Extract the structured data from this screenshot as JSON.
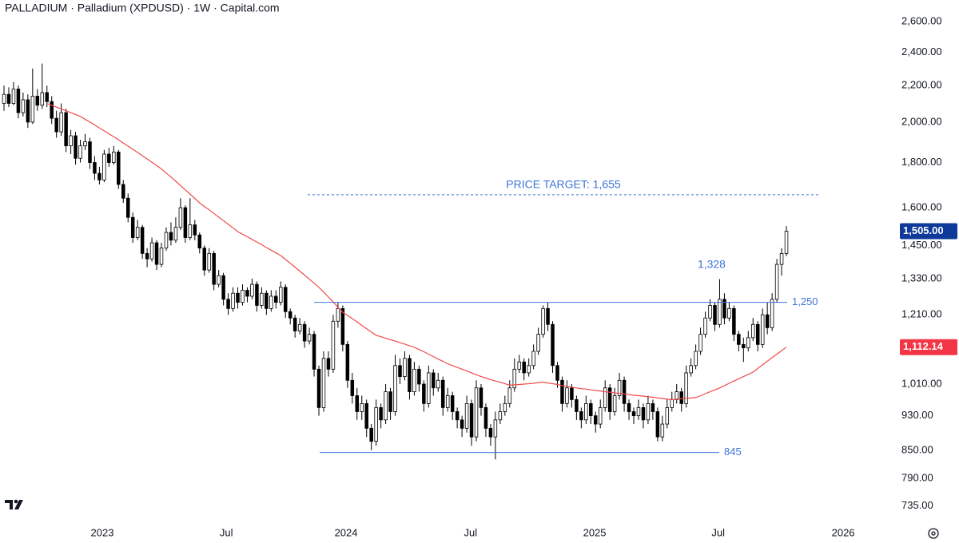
{
  "chart_data": {
    "type": "candlestick",
    "title": "PALLADIUM · Palladium (XPDUSD) · 1W · Capital.com",
    "log_scale": true,
    "ylim": [
      703,
      2750
    ],
    "yticks": [
      {
        "value": 2600,
        "label": "2,600.00"
      },
      {
        "value": 2400,
        "label": "2,400.00"
      },
      {
        "value": 2200,
        "label": "2,200.00"
      },
      {
        "value": 2000,
        "label": "2,000.00"
      },
      {
        "value": 1800,
        "label": "1,800.00"
      },
      {
        "value": 1600,
        "label": "1,600.00"
      },
      {
        "value": 1450,
        "label": "1,450.00"
      },
      {
        "value": 1330,
        "label": "1,330.00"
      },
      {
        "value": 1210,
        "label": "1,210.00"
      },
      {
        "value": 1010,
        "label": "1,010.00"
      },
      {
        "value": 930,
        "label": "930.00"
      },
      {
        "value": 850,
        "label": "850.00"
      },
      {
        "value": 790,
        "label": "790.00"
      },
      {
        "value": 735,
        "label": "735.00"
      }
    ],
    "xlim": [
      -0.84,
      185.1
    ],
    "xticks": [
      {
        "value": 20.6,
        "label": "2023"
      },
      {
        "value": 46.6,
        "label": "Jul"
      },
      {
        "value": 71.7,
        "label": "2024"
      },
      {
        "value": 97.8,
        "label": "Jul"
      },
      {
        "value": 123.8,
        "label": "2025"
      },
      {
        "value": 149.7,
        "label": "Jul"
      },
      {
        "value": 175.9,
        "label": "2026"
      }
    ],
    "up_color": "#ffffff",
    "down_color": "#000000",
    "candles": [
      [
        2100,
        2200,
        2060,
        2150
      ],
      [
        2150,
        2190,
        2080,
        2100
      ],
      [
        2100,
        2220,
        2090,
        2180
      ],
      [
        2180,
        2200,
        2020,
        2050
      ],
      [
        2050,
        2160,
        2030,
        2120
      ],
      [
        2120,
        2150,
        1970,
        2000
      ],
      [
        2000,
        2300,
        1990,
        2140
      ],
      [
        2140,
        2180,
        2060,
        2090
      ],
      [
        2090,
        2330,
        2070,
        2160
      ],
      [
        2160,
        2200,
        2080,
        2110
      ],
      [
        2110,
        2140,
        1990,
        2020
      ],
      [
        2020,
        2060,
        1920,
        1950
      ],
      [
        1950,
        2100,
        1930,
        2050
      ],
      [
        2050,
        2070,
        1850,
        1880
      ],
      [
        1880,
        1960,
        1840,
        1930
      ],
      [
        1930,
        1950,
        1790,
        1820
      ],
      [
        1820,
        1910,
        1800,
        1880
      ],
      [
        1880,
        1940,
        1860,
        1900
      ],
      [
        1900,
        1920,
        1770,
        1800
      ],
      [
        1800,
        1830,
        1720,
        1750
      ],
      [
        1750,
        1780,
        1700,
        1720
      ],
      [
        1720,
        1860,
        1710,
        1840
      ],
      [
        1840,
        1870,
        1780,
        1800
      ],
      [
        1800,
        1880,
        1790,
        1850
      ],
      [
        1850,
        1860,
        1680,
        1700
      ],
      [
        1700,
        1720,
        1620,
        1640
      ],
      [
        1640,
        1660,
        1540,
        1560
      ],
      [
        1560,
        1580,
        1460,
        1480
      ],
      [
        1480,
        1550,
        1470,
        1520
      ],
      [
        1520,
        1530,
        1400,
        1420
      ],
      [
        1420,
        1440,
        1370,
        1400
      ],
      [
        1400,
        1480,
        1390,
        1460
      ],
      [
        1460,
        1470,
        1360,
        1380
      ],
      [
        1380,
        1460,
        1370,
        1440
      ],
      [
        1440,
        1520,
        1430,
        1500
      ],
      [
        1500,
        1540,
        1450,
        1470
      ],
      [
        1470,
        1560,
        1460,
        1520
      ],
      [
        1520,
        1640,
        1510,
        1600
      ],
      [
        1600,
        1610,
        1460,
        1480
      ],
      [
        1480,
        1640,
        1470,
        1530
      ],
      [
        1530,
        1550,
        1470,
        1490
      ],
      [
        1490,
        1500,
        1420,
        1440
      ],
      [
        1440,
        1450,
        1340,
        1360
      ],
      [
        1360,
        1440,
        1350,
        1420
      ],
      [
        1420,
        1430,
        1290,
        1310
      ],
      [
        1310,
        1360,
        1300,
        1340
      ],
      [
        1340,
        1350,
        1240,
        1260
      ],
      [
        1260,
        1280,
        1210,
        1230
      ],
      [
        1230,
        1300,
        1220,
        1280
      ],
      [
        1280,
        1300,
        1230,
        1250
      ],
      [
        1250,
        1310,
        1240,
        1290
      ],
      [
        1290,
        1300,
        1250,
        1270
      ],
      [
        1270,
        1330,
        1260,
        1310
      ],
      [
        1310,
        1320,
        1220,
        1240
      ],
      [
        1240,
        1300,
        1230,
        1280
      ],
      [
        1280,
        1290,
        1210,
        1230
      ],
      [
        1230,
        1290,
        1220,
        1270
      ],
      [
        1270,
        1290,
        1230,
        1250
      ],
      [
        1250,
        1320,
        1240,
        1300
      ],
      [
        1300,
        1310,
        1200,
        1220
      ],
      [
        1220,
        1230,
        1180,
        1200
      ],
      [
        1200,
        1210,
        1140,
        1160
      ],
      [
        1160,
        1200,
        1150,
        1180
      ],
      [
        1180,
        1190,
        1110,
        1130
      ],
      [
        1130,
        1170,
        1120,
        1150
      ],
      [
        1150,
        1160,
        1030,
        1050
      ],
      [
        1050,
        1060,
        930,
        950
      ],
      [
        950,
        1100,
        940,
        1080
      ],
      [
        1080,
        1100,
        1030,
        1050
      ],
      [
        1050,
        1210,
        1040,
        1190
      ],
      [
        1190,
        1250,
        1170,
        1230
      ],
      [
        1230,
        1240,
        1100,
        1120
      ],
      [
        1120,
        1130,
        1000,
        1020
      ],
      [
        1020,
        1040,
        960,
        980
      ],
      [
        980,
        1000,
        920,
        940
      ],
      [
        940,
        980,
        920,
        960
      ],
      [
        960,
        970,
        880,
        900
      ],
      [
        900,
        910,
        850,
        870
      ],
      [
        870,
        970,
        860,
        950
      ],
      [
        950,
        960,
        900,
        920
      ],
      [
        920,
        1010,
        910,
        990
      ],
      [
        990,
        1000,
        920,
        940
      ],
      [
        940,
        1090,
        930,
        1060
      ],
      [
        1060,
        1080,
        1010,
        1030
      ],
      [
        1030,
        1100,
        1020,
        1080
      ],
      [
        1080,
        1090,
        970,
        990
      ],
      [
        990,
        1070,
        980,
        1050
      ],
      [
        1050,
        1060,
        990,
        1010
      ],
      [
        1010,
        1020,
        940,
        960
      ],
      [
        960,
        1060,
        950,
        1040
      ],
      [
        1040,
        1050,
        980,
        1000
      ],
      [
        1000,
        1040,
        990,
        1020
      ],
      [
        1020,
        1030,
        930,
        950
      ],
      [
        950,
        1000,
        940,
        980
      ],
      [
        980,
        990,
        920,
        940
      ],
      [
        940,
        950,
        900,
        920
      ],
      [
        920,
        930,
        880,
        900
      ],
      [
        900,
        980,
        890,
        960
      ],
      [
        960,
        970,
        860,
        880
      ],
      [
        880,
        1020,
        870,
        1000
      ],
      [
        1000,
        1010,
        930,
        950
      ],
      [
        950,
        960,
        880,
        900
      ],
      [
        900,
        910,
        860,
        880
      ],
      [
        880,
        940,
        830,
        920
      ],
      [
        920,
        960,
        910,
        940
      ],
      [
        940,
        980,
        930,
        960
      ],
      [
        960,
        1020,
        950,
        1000
      ],
      [
        1000,
        1080,
        990,
        1050
      ],
      [
        1050,
        1090,
        1040,
        1070
      ],
      [
        1070,
        1080,
        1020,
        1040
      ],
      [
        1040,
        1080,
        1030,
        1060
      ],
      [
        1060,
        1120,
        1050,
        1100
      ],
      [
        1100,
        1170,
        1090,
        1150
      ],
      [
        1150,
        1240,
        1140,
        1230
      ],
      [
        1230,
        1250,
        1160,
        1180
      ],
      [
        1180,
        1190,
        1040,
        1060
      ],
      [
        1060,
        1070,
        1000,
        1020
      ],
      [
        1020,
        1030,
        940,
        960
      ],
      [
        960,
        1020,
        950,
        1000
      ],
      [
        1000,
        1010,
        950,
        970
      ],
      [
        970,
        980,
        920,
        940
      ],
      [
        940,
        950,
        900,
        920
      ],
      [
        920,
        980,
        910,
        960
      ],
      [
        960,
        970,
        910,
        930
      ],
      [
        930,
        940,
        890,
        910
      ],
      [
        910,
        970,
        900,
        950
      ],
      [
        950,
        1020,
        940,
        1000
      ],
      [
        1000,
        1010,
        920,
        940
      ],
      [
        940,
        1000,
        930,
        980
      ],
      [
        980,
        1040,
        970,
        1020
      ],
      [
        1020,
        1030,
        940,
        960
      ],
      [
        960,
        970,
        920,
        940
      ],
      [
        940,
        950,
        910,
        930
      ],
      [
        930,
        970,
        920,
        950
      ],
      [
        950,
        960,
        900,
        920
      ],
      [
        920,
        980,
        910,
        960
      ],
      [
        960,
        970,
        920,
        940
      ],
      [
        940,
        950,
        870,
        880
      ],
      [
        880,
        930,
        870,
        910
      ],
      [
        910,
        970,
        900,
        950
      ],
      [
        950,
        990,
        940,
        970
      ],
      [
        970,
        1010,
        960,
        990
      ],
      [
        990,
        1000,
        940,
        960
      ],
      [
        960,
        1060,
        950,
        1040
      ],
      [
        1040,
        1080,
        1030,
        1060
      ],
      [
        1060,
        1120,
        1050,
        1100
      ],
      [
        1100,
        1170,
        1090,
        1150
      ],
      [
        1150,
        1220,
        1140,
        1200
      ],
      [
        1200,
        1260,
        1190,
        1240
      ],
      [
        1240,
        1250,
        1160,
        1180
      ],
      [
        1180,
        1328,
        1170,
        1260
      ],
      [
        1260,
        1280,
        1180,
        1200
      ],
      [
        1200,
        1250,
        1190,
        1230
      ],
      [
        1230,
        1240,
        1130,
        1150
      ],
      [
        1150,
        1160,
        1100,
        1120
      ],
      [
        1120,
        1140,
        1070,
        1110
      ],
      [
        1110,
        1160,
        1100,
        1140
      ],
      [
        1140,
        1200,
        1130,
        1180
      ],
      [
        1180,
        1190,
        1100,
        1120
      ],
      [
        1120,
        1230,
        1110,
        1210
      ],
      [
        1210,
        1250,
        1150,
        1170
      ],
      [
        1170,
        1280,
        1160,
        1260
      ],
      [
        1260,
        1400,
        1250,
        1380
      ],
      [
        1380,
        1440,
        1340,
        1420
      ],
      [
        1420,
        1525,
        1410,
        1505
      ]
    ],
    "ma": {
      "color": "#f04b4b",
      "values": [
        null,
        null,
        null,
        null,
        null,
        null,
        null,
        null,
        null,
        2100,
        2090,
        2080,
        2070,
        2060,
        2050,
        2040,
        2030,
        2015,
        2000,
        1985,
        1970,
        1955,
        1940,
        1925,
        1910,
        1894,
        1879,
        1863,
        1848,
        1832,
        1817,
        1801,
        1786,
        1770,
        1751,
        1733,
        1714,
        1695,
        1676,
        1658,
        1639,
        1620,
        1605,
        1591,
        1576,
        1561,
        1547,
        1532,
        1518,
        1503,
        1493,
        1483,
        1473,
        1463,
        1453,
        1442,
        1432,
        1422,
        1412,
        1398,
        1384,
        1370,
        1356,
        1342,
        1328,
        1314,
        1300,
        1284,
        1267,
        1251,
        1234,
        1218,
        1208,
        1198,
        1188,
        1177,
        1167,
        1157,
        1147,
        1143,
        1138,
        1134,
        1130,
        1125,
        1121,
        1116,
        1112,
        1105,
        1099,
        1092,
        1085,
        1078,
        1072,
        1065,
        1060,
        1055,
        1050,
        1045,
        1040,
        1035,
        1030,
        1026,
        1022,
        1018,
        1015,
        1011,
        1007,
        1008,
        1009,
        1010,
        1011,
        1012,
        1014,
        1015,
        1013,
        1011,
        1009,
        1006,
        1004,
        1002,
        1000,
        998,
        997,
        995,
        993,
        992,
        990,
        989,
        987,
        986,
        984,
        983,
        981,
        980,
        979,
        977,
        976,
        974,
        973,
        971,
        970,
        971,
        972,
        973,
        974,
        975,
        980,
        985,
        990,
        995,
        1000,
        1006,
        1012,
        1018,
        1024,
        1030,
        1036,
        1042,
        1052,
        1062,
        1072,
        1082,
        1092,
        1102,
        1112.14
      ]
    },
    "level_color": "#3d74d9",
    "levels": [
      {
        "value": 1655,
        "label": "PRICE TARGET: 1,655",
        "style": "dashed"
      },
      {
        "value": 1250,
        "label": "1,250",
        "style": "solid"
      },
      {
        "value": 845,
        "label": "845",
        "style": "solid"
      }
    ],
    "annotations": [
      {
        "value": 1328,
        "label": "1,328"
      }
    ],
    "last_price": {
      "value": 1505,
      "label": "1,505.00",
      "color": "#0f3a99"
    },
    "ma_label": {
      "value": 1112.14,
      "label": "1,112.14",
      "color": "#f23645"
    }
  }
}
